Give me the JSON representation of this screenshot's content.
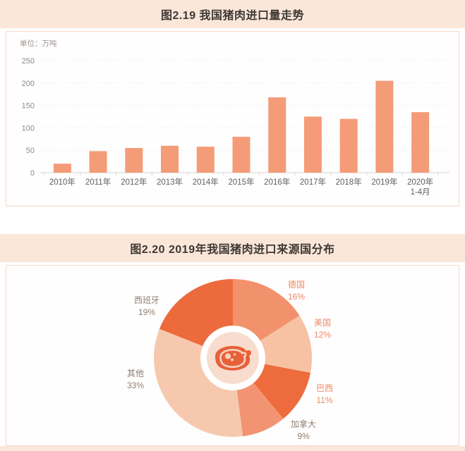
{
  "figure1": {
    "title": "图2.19 我国猪肉进口量走势",
    "unit_label": "单位：万吨"
  },
  "figure2": {
    "title": "图2.20 2019年我国猪肉进口来源国分布"
  },
  "colors": {
    "band_bg": "#fbe7da",
    "panel_border": "#f4d7c5",
    "bar": "#f49b77",
    "grid": "#ececec",
    "axis": "#d6d2ce",
    "y_tick_text": "#8a8a8a",
    "x_tick_text": "#5f5f5f",
    "steak": "#e8603a",
    "steak_outline": "#f6d3c0",
    "donut_ring": "#ffffff",
    "donut_center": "#f8ddcf"
  },
  "chart_data": [
    {
      "type": "bar",
      "title": "图2.19 我国猪肉进口量走势",
      "unit": "万吨",
      "categories": [
        "2010年",
        "2011年",
        "2012年",
        "2013年",
        "2014年",
        "2015年",
        "2016年",
        "2017年",
        "2018年",
        "2019年",
        "2020年 1-4月"
      ],
      "values": [
        20,
        48,
        55,
        60,
        58,
        80,
        168,
        125,
        120,
        205,
        135
      ],
      "xlabel": "",
      "ylabel": "万吨",
      "ylim": [
        0,
        250
      ],
      "ytick_step": 50,
      "grid": true,
      "legend": "none",
      "bar_color": "#f49b77"
    },
    {
      "type": "pie",
      "title": "图2.20 2019年我国猪肉进口来源国分布",
      "donut_center_icon": "steak-icon",
      "start_angle_deg": 0,
      "clockwise": true,
      "slices": [
        {
          "label": "德国",
          "pct": 16,
          "color": "#f2926c",
          "label_color": "#ec8a66"
        },
        {
          "label": "美国",
          "pct": 12,
          "color": "#f7c2a3",
          "label_color": "#ec8a66"
        },
        {
          "label": "巴西",
          "pct": 11,
          "color": "#ee6b3d",
          "label_color": "#ec8a66"
        },
        {
          "label": "加拿大",
          "pct": 9,
          "color": "#f29372",
          "label_color": "#8d7f75"
        },
        {
          "label": "其他",
          "pct": 33,
          "color": "#f6c9ae",
          "label_color": "#8d7f75"
        },
        {
          "label": "西班牙",
          "pct": 19,
          "color": "#ed6a3c",
          "label_color": "#8d7f75"
        }
      ]
    }
  ]
}
